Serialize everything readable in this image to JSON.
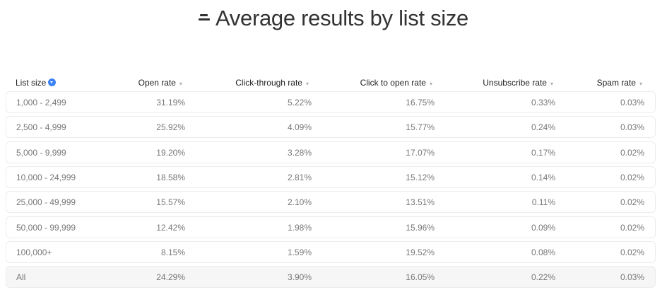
{
  "title": "Average results by list size",
  "title_icon": "list-lines-icon",
  "sort_color": "#3b82f6",
  "columns": [
    "List size",
    "Open rate",
    "Click-through rate",
    "Click to open rate",
    "Unsubscribe rate",
    "Spam rate"
  ],
  "rows": [
    [
      "1,000 - 2,499",
      "31.19%",
      "5.22%",
      "16.75%",
      "0.33%",
      "0.03%"
    ],
    [
      "2,500 - 4,999",
      "25.92%",
      "4.09%",
      "15.77%",
      "0.24%",
      "0.03%"
    ],
    [
      "5,000 - 9,999",
      "19.20%",
      "3.28%",
      "17.07%",
      "0.17%",
      "0.02%"
    ],
    [
      "10,000 - 24,999",
      "18.58%",
      "2.81%",
      "15.12%",
      "0.14%",
      "0.02%"
    ],
    [
      "25,000 - 49,999",
      "15.57%",
      "2.10%",
      "13.51%",
      "0.11%",
      "0.02%"
    ],
    [
      "50,000 - 99,999",
      "12.42%",
      "1.98%",
      "15.96%",
      "0.09%",
      "0.02%"
    ],
    [
      "100,000+",
      "8.15%",
      "1.59%",
      "19.52%",
      "0.08%",
      "0.02%"
    ],
    [
      "All",
      "24.29%",
      "3.90%",
      "16.05%",
      "0.22%",
      "0.03%"
    ]
  ]
}
